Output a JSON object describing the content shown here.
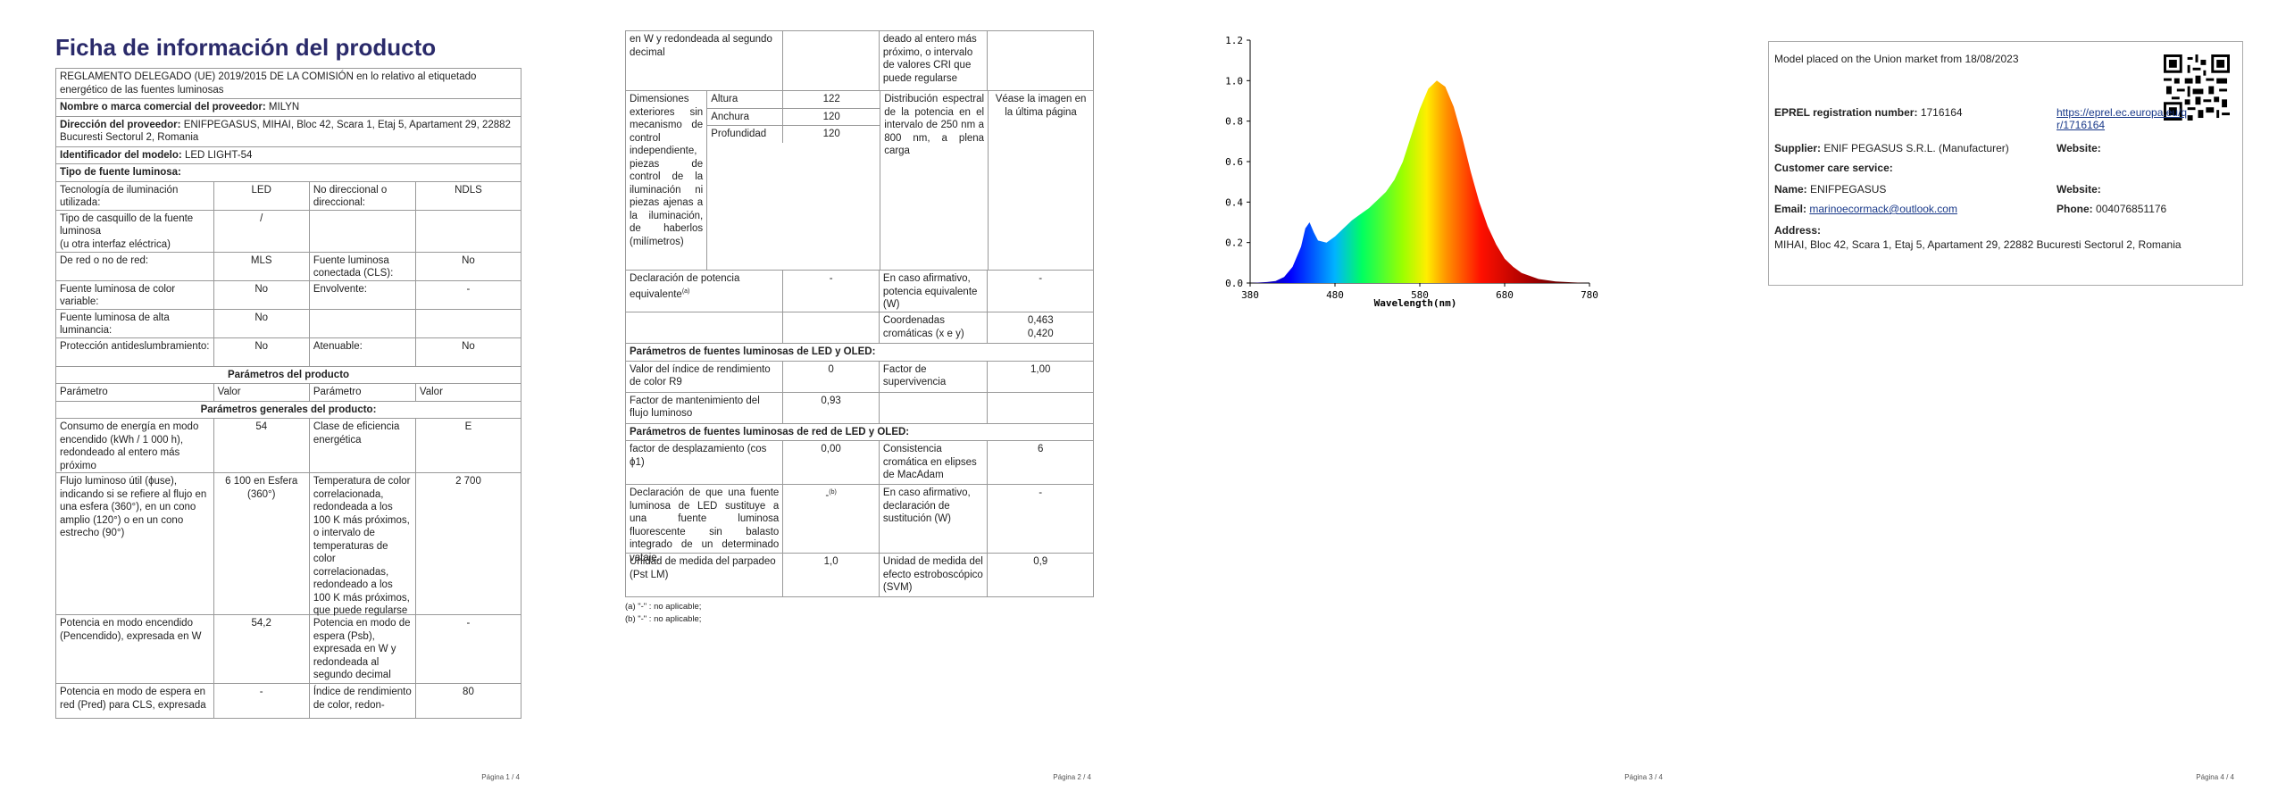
{
  "pages": {
    "p1": "Página 1 / 4",
    "p2": "Página 2 / 4",
    "p3": "Página 3 / 4",
    "p4": "Página 4 / 4"
  },
  "page1": {
    "title": "Ficha de información del producto",
    "regulation": "REGLAMENTO DELEGADO (UE) 2019/2015 DE LA COMISIÓN en lo relativo al etiquetado energético de las fuentes luminosas",
    "supplier_name_label": "Nombre o marca comercial del proveedor:",
    "supplier_name_value": "MILYN",
    "supplier_address_label": "Dirección del proveedor:",
    "supplier_address_value": "ENIFPEGASUS, MIHAI, Bloc 42, Scara 1, Etaj 5, Apartament 29, 22882 Bucuresti Sectorul 2, Romania",
    "model_label": "Identificador del modelo:",
    "model_value": "LED LIGHT-54",
    "type_label": "Tipo de fuente luminosa:",
    "rows1": [
      [
        "Tecnología de iluminación utilizada:",
        "LED",
        "No direccional o direccional:",
        "NDLS"
      ],
      [
        "Tipo de casquillo de la fuente luminosa\n(u otra interfaz eléctrica)",
        "/",
        "",
        ""
      ],
      [
        "De red o no de red:",
        "MLS",
        "Fuente luminosa conectada (CLS):",
        "No"
      ],
      [
        "Fuente luminosa de color variable:",
        "No",
        "Envolvente:",
        "-"
      ],
      [
        "Fuente luminosa de alta luminancia:",
        "No",
        "",
        ""
      ],
      [
        "Protección antideslumbramiento:",
        "No",
        "Atenuable:",
        "No"
      ]
    ],
    "params_header": "Parámetros del producto",
    "col_headers": [
      "Parámetro",
      "Valor",
      "Parámetro",
      "Valor"
    ],
    "general_header": "Parámetros generales del producto:",
    "rows2": [
      [
        "Consumo de energía en modo encendido (kWh / 1 000 h), redondeado al entero más próximo",
        "54",
        "Clase de eficiencia energética",
        "E"
      ],
      [
        "Flujo luminoso útil (ϕuse), indicando si se refiere al flujo en una esfera (360°), en un cono amplio (120°) o en un cono estrecho (90°)",
        "6 100 en Esfera (360°)",
        "Temperatura de color correlacionada, redondeada a los 100 K más próximos, o intervalo de temperaturas de color correlacionadas, redondeado a los 100 K más próximos, que puede regularse",
        "2 700"
      ],
      [
        "Potencia en modo encendido (Pencendido), expresada en W",
        "54,2",
        "Potencia en modo de espera (Psb), expresada en W y redondeada al segundo decimal",
        "-"
      ],
      [
        "Potencia en modo de espera en red (Pred) para CLS, expresada",
        "-",
        "Índice de rendimiento de color, redon-",
        "80"
      ]
    ]
  },
  "page2": {
    "top_left": "en W y redondeada al segundo decimal",
    "top_right": "deado al entero más próximo, o intervalo de valores CRI que puede regularse",
    "dims_label": "Dimensiones exteriores sin mecanismo de control independiente, piezas de control de la iluminación ni piezas ajenas a la iluminación, de haberlos (milímetros)",
    "dims": [
      [
        "Altura",
        "122"
      ],
      [
        "Anchura",
        "120"
      ],
      [
        "Profundidad",
        "120"
      ]
    ],
    "spd_label": "Distribución espectral de la potencia en el intervalo de 250 nm a 800 nm, a plena carga",
    "spd_value": "Véase la imagen en la última página",
    "equiv_label": "Declaración de potencia equivalente",
    "equiv_sup": "(a)",
    "equiv_value": "-",
    "equiv_yes": "En caso afirmativo, potencia equivalente (W)",
    "equiv_yes_value": "-",
    "chroma_label": "Coordenadas cromáticas (x e y)",
    "chroma_x": "0,463",
    "chroma_y": "0,420",
    "led_header": "Parámetros de fuentes luminosas de LED y OLED:",
    "r9_label": "Valor del índice de rendimiento de color R9",
    "r9_value": "0",
    "surv_label": "Factor de supervivencia",
    "surv_value": "1,00",
    "maint_label": "Factor de mantenimiento del flujo luminoso",
    "maint_value": "0,93",
    "mains_header": "Parámetros de fuentes luminosas de red de LED y OLED:",
    "cos_label": "factor de desplazamiento (cos ϕ1)",
    "cos_value": "0,00",
    "macadam_label": "Consistencia cromática en elipses de MacAdam",
    "macadam_value": "6",
    "replace_label": "Declaración de que una fuente luminosa de LED sustituye a una fuente luminosa fluorescente sin balasto integrado de un determinado vataje.",
    "replace_value": "-",
    "replace_sup": "(b)",
    "replace_yes": "En caso afirmativo, declaración de sustitución (W)",
    "replace_yes_value": "-",
    "flicker_label": "Unidad de medida del parpadeo (Pst LM)",
    "flicker_value": "1,0",
    "svm_label": "Unidad de medida del efecto estroboscópico (SVM)",
    "svm_value": "0,9",
    "note_a": "(a) \"-\" : no aplicable;",
    "note_b": "(b) \"-\" : no aplicable;"
  },
  "chart_data": {
    "type": "area",
    "xlabel": "Wavelength(nm)",
    "ylabel": "",
    "xlim": [
      380,
      780
    ],
    "ylim": [
      0,
      1.2
    ],
    "xticks": [
      380,
      480,
      580,
      680,
      780
    ],
    "yticks": [
      0.0,
      0.2,
      0.4,
      0.6,
      0.8,
      1.0,
      1.2
    ],
    "x": [
      380,
      400,
      410,
      420,
      430,
      440,
      445,
      450,
      455,
      460,
      470,
      480,
      490,
      500,
      510,
      520,
      530,
      540,
      550,
      560,
      570,
      580,
      590,
      600,
      610,
      620,
      630,
      640,
      650,
      660,
      670,
      680,
      690,
      700,
      720,
      740,
      760,
      780
    ],
    "values": [
      0,
      0.005,
      0.01,
      0.03,
      0.08,
      0.18,
      0.27,
      0.3,
      0.25,
      0.21,
      0.2,
      0.23,
      0.27,
      0.31,
      0.34,
      0.37,
      0.41,
      0.45,
      0.51,
      0.6,
      0.73,
      0.86,
      0.96,
      1.0,
      0.97,
      0.87,
      0.72,
      0.55,
      0.4,
      0.28,
      0.19,
      0.12,
      0.08,
      0.05,
      0.02,
      0.008,
      0.003,
      0.0
    ]
  },
  "page4": {
    "placed": "Model placed on the Union market from 18/08/2023",
    "eprel_label": "EPREL registration number:",
    "eprel_value": "1716164",
    "eprel_link": "https://eprel.ec.europa.eu/qr/1716164",
    "supplier_label": "Supplier:",
    "supplier_value": "ENIF PEGASUS S.R.L. (Manufacturer)",
    "website_label": "Website:",
    "website_value": "",
    "care_label": "Customer care service:",
    "name_label": "Name:",
    "name_value": "ENIFPEGASUS",
    "website2_label": "Website:",
    "email_label": "Email:",
    "email_value": "marinoecormack@outlook.com",
    "phone_label": "Phone:",
    "phone_value": "004076851176",
    "address_label": "Address:",
    "address_value": "MIHAI, Bloc 42, Scara 1, Etaj 5, Apartament 29, 22882 Bucuresti Sectorul 2, Romania"
  }
}
